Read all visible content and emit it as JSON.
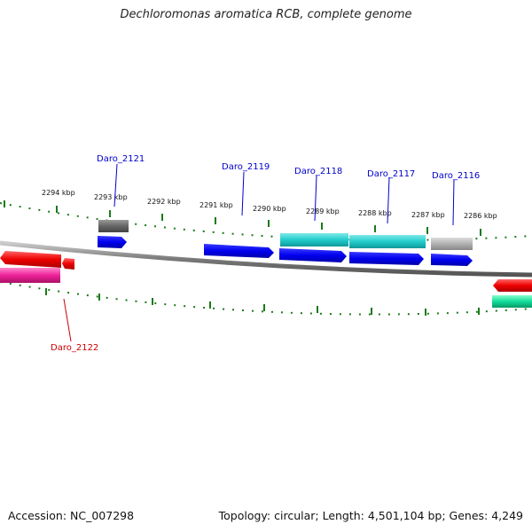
{
  "title": "Dechloromonas aromatica RCB, complete genome",
  "accession": "Accession: NC_007298",
  "summary": "Topology: circular; Length: 4,501,104 bp; Genes: 4,249",
  "colors": {
    "backbone": "#9a9a9a",
    "ticks": "#1a7a1a",
    "label_blue": "#0000cc",
    "label_red": "#cc0000",
    "gene_blue": "#0000ee",
    "gene_cyan": "#22cccc",
    "gene_gray": "#b0b0b0",
    "gene_darkgray": "#666666",
    "gene_red": "#ee0000",
    "gene_pink": "#ee2299",
    "gene_green": "#11dd99"
  },
  "scale_labels": [
    "2294 kbp",
    "2293 kbp",
    "2292 kbp",
    "2291 kbp",
    "2290 kbp",
    "2289 kbp",
    "2288 kbp",
    "2287 kbp",
    "2286 kbp"
  ],
  "gene_labels": {
    "daro_2121": "Daro_2121",
    "daro_2119": "Daro_2119",
    "daro_2118": "Daro_2118",
    "daro_2117": "Daro_2117",
    "daro_2116": "Daro_2116",
    "daro_2122": "Daro_2122"
  }
}
